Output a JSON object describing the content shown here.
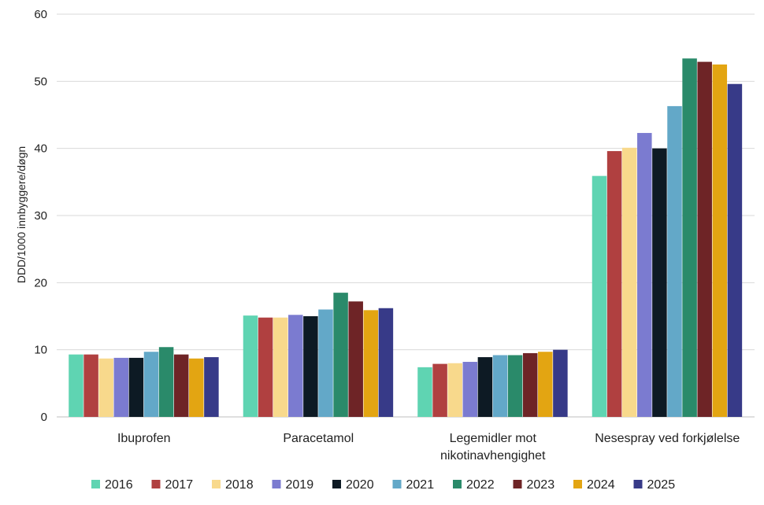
{
  "chart_data": {
    "type": "bar",
    "ylabel": "DDD/1000 innbyggere/døgn",
    "ylim": [
      0,
      60
    ],
    "yticks": [
      "0",
      "10",
      "20",
      "30",
      "40",
      "50",
      "60"
    ],
    "grid": true,
    "legend_position": "bottom",
    "categories": [
      [
        "Ibuprofen"
      ],
      [
        "Paracetamol"
      ],
      [
        "Legemidler mot",
        "nikotinavhengighet"
      ],
      [
        "Nesespray ved forkjølelse"
      ]
    ],
    "series": [
      {
        "name": "2016",
        "color": "#5fd4b2",
        "values": [
          9.3,
          15.1,
          7.4,
          35.9
        ]
      },
      {
        "name": "2017",
        "color": "#b04040",
        "values": [
          9.3,
          14.8,
          7.9,
          39.6
        ]
      },
      {
        "name": "2018",
        "color": "#f8d98c",
        "values": [
          8.7,
          14.8,
          8.0,
          40.1
        ]
      },
      {
        "name": "2019",
        "color": "#7b7bd0",
        "values": [
          8.8,
          15.2,
          8.2,
          42.3
        ]
      },
      {
        "name": "2020",
        "color": "#0d1a24",
        "values": [
          8.8,
          15.0,
          8.9,
          40.0
        ]
      },
      {
        "name": "2021",
        "color": "#63a8c8",
        "values": [
          9.7,
          16.0,
          9.2,
          46.3
        ]
      },
      {
        "name": "2022",
        "color": "#2a8a6a",
        "values": [
          10.4,
          18.5,
          9.2,
          53.4
        ]
      },
      {
        "name": "2023",
        "color": "#6e2426",
        "values": [
          9.3,
          17.2,
          9.5,
          52.9
        ]
      },
      {
        "name": "2024",
        "color": "#e3a512",
        "values": [
          8.7,
          15.9,
          9.7,
          52.5
        ]
      },
      {
        "name": "2025",
        "color": "#373a88",
        "values": [
          8.9,
          16.2,
          10.0,
          49.6
        ]
      }
    ]
  }
}
